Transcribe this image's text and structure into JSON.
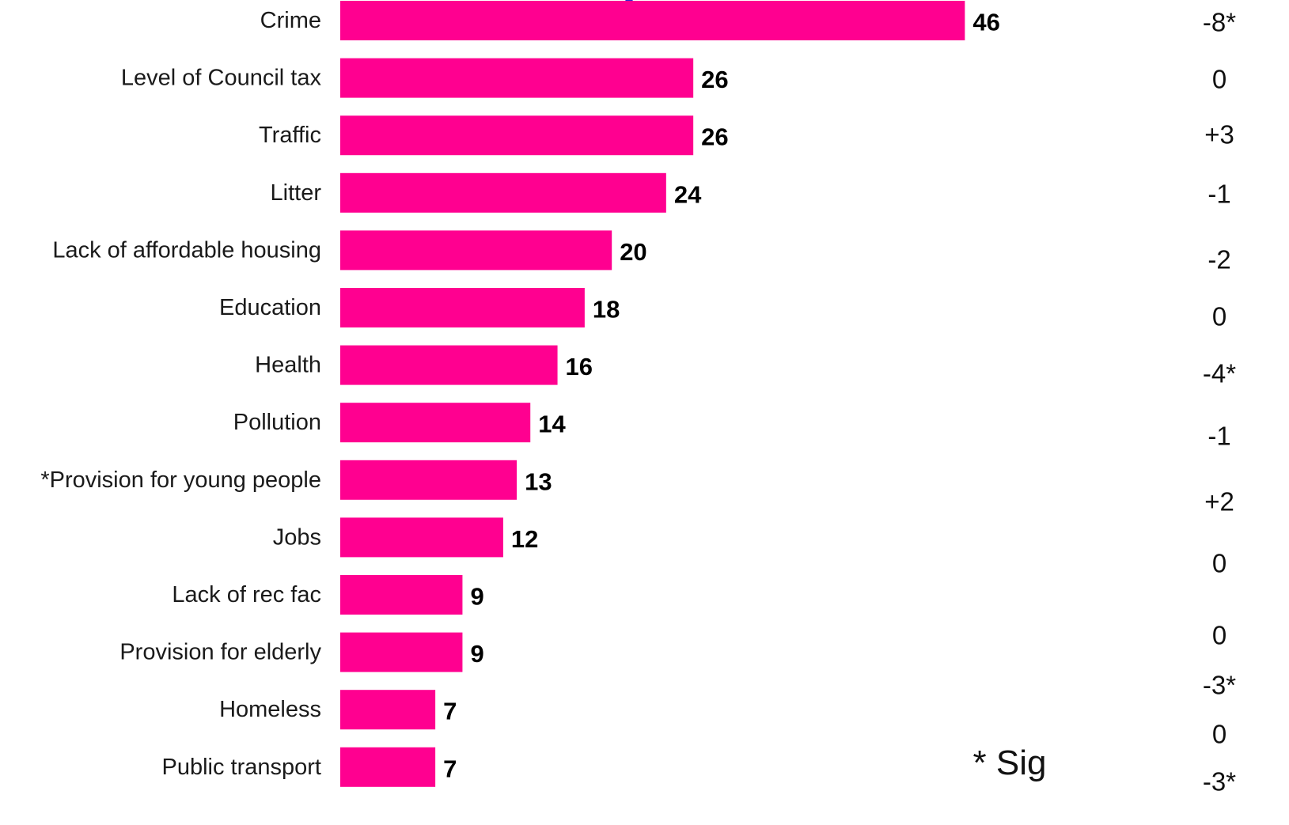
{
  "colors": {
    "bar": "#ff0090",
    "marker": "#2a2ad0"
  },
  "chart_data": {
    "type": "bar",
    "orientation": "horizontal",
    "title": "",
    "xlabel": "",
    "ylabel": "",
    "xlim": [
      0,
      46
    ],
    "grid": false,
    "categories": [
      "Crime",
      "Level of Council tax",
      "Traffic",
      "Litter",
      "Lack of affordable housing",
      "Education",
      "Health",
      "Pollution",
      "*Provision for young people",
      "Jobs",
      "Lack of rec fac",
      "Provision for elderly",
      "Homeless",
      "Public transport"
    ],
    "values": [
      46,
      26,
      26,
      24,
      20,
      18,
      16,
      14,
      13,
      12,
      9,
      9,
      7,
      7
    ],
    "changes": [
      "-8*",
      "0",
      "+3",
      "-1",
      "-2",
      "0",
      "-4*",
      "-1",
      "+2",
      "0",
      "0",
      "-3*",
      "0",
      "-3*"
    ],
    "annotations": [
      "* Sig"
    ]
  }
}
